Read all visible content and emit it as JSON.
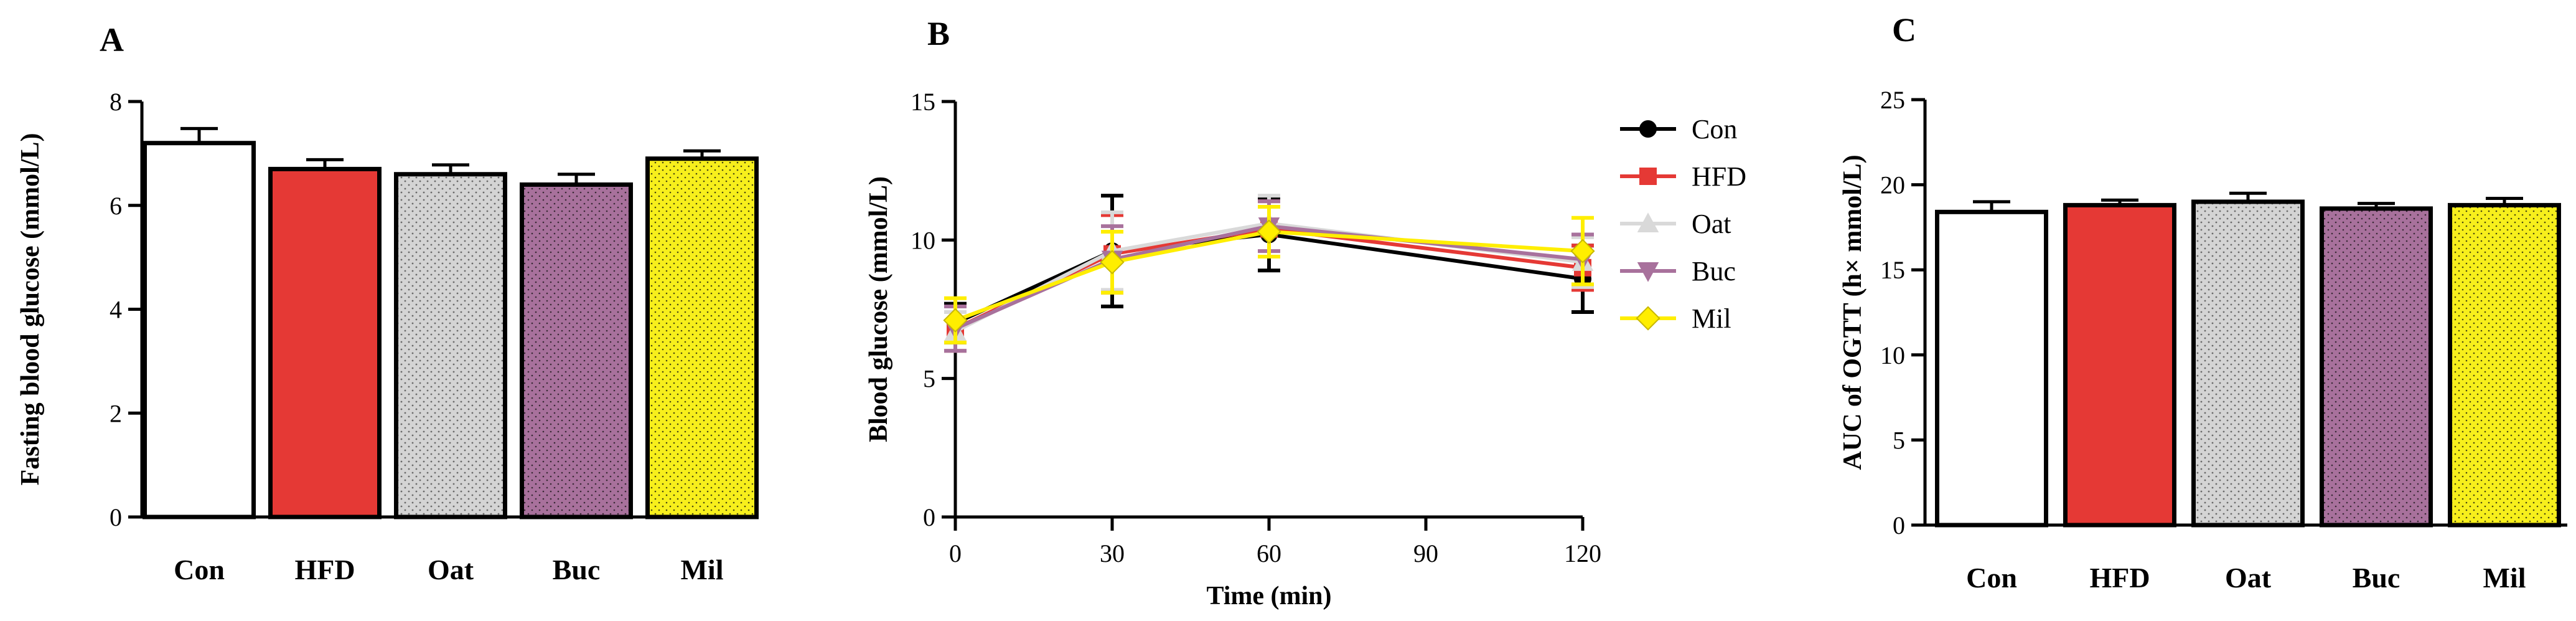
{
  "chart_data": [
    {
      "panel": "A",
      "type": "bar",
      "title": "",
      "xlabel": "",
      "ylabel": "Fasting blood glucose (mmol/L)",
      "categories": [
        "Con",
        "HFD",
        "Oat",
        "Buc",
        "Mil"
      ],
      "values": [
        7.2,
        6.7,
        6.6,
        6.4,
        6.9
      ],
      "errors": [
        0.28,
        0.18,
        0.18,
        0.2,
        0.15
      ],
      "colors": [
        "#ffffff",
        "#e53935",
        "#d4d4d4",
        "#a8719c",
        "#f7ef1c"
      ],
      "ylim": [
        0,
        8
      ],
      "yticks": [
        0,
        2,
        4,
        6,
        8
      ]
    },
    {
      "panel": "B",
      "type": "line",
      "title": "",
      "xlabel": "Time (min)",
      "ylabel": "Blood glucose (mmol/L)",
      "x": [
        0,
        30,
        60,
        120
      ],
      "xlim": [
        0,
        120
      ],
      "xticks": [
        0,
        30,
        60,
        90,
        120
      ],
      "ylim": [
        0,
        15
      ],
      "yticks": [
        0,
        5,
        10,
        15
      ],
      "legend_position": "right",
      "series": [
        {
          "name": "Con",
          "values": [
            7.0,
            9.6,
            10.2,
            8.6
          ],
          "errors": [
            0.7,
            2.0,
            1.3,
            1.2
          ],
          "color": "#000000",
          "marker": "circle"
        },
        {
          "name": "HFD",
          "values": [
            6.8,
            9.5,
            10.4,
            9.0
          ],
          "errors": [
            0.8,
            1.4,
            1.0,
            0.8
          ],
          "color": "#e53935",
          "marker": "square"
        },
        {
          "name": "Oat",
          "values": [
            6.7,
            9.6,
            10.6,
            9.2
          ],
          "errors": [
            0.7,
            1.4,
            1.0,
            0.9
          ],
          "color": "#d9d9d9",
          "marker": "triangle-up"
        },
        {
          "name": "Buc",
          "values": [
            6.8,
            9.3,
            10.5,
            9.3
          ],
          "errors": [
            0.8,
            1.2,
            0.9,
            0.9
          ],
          "color": "#a8719c",
          "marker": "triangle-down"
        },
        {
          "name": "Mil",
          "values": [
            7.1,
            9.2,
            10.3,
            9.6
          ],
          "errors": [
            0.8,
            1.1,
            0.9,
            1.2
          ],
          "color": "#ffee00",
          "marker": "diamond"
        }
      ]
    },
    {
      "panel": "C",
      "type": "bar",
      "title": "",
      "xlabel": "",
      "ylabel": "AUC of OGTT (h× mmol/L)",
      "categories": [
        "Con",
        "HFD",
        "Oat",
        "Buc",
        "Mil"
      ],
      "values": [
        18.4,
        18.8,
        19.0,
        18.6,
        18.8
      ],
      "errors": [
        0.6,
        0.3,
        0.5,
        0.3,
        0.4
      ],
      "colors": [
        "#ffffff",
        "#e53935",
        "#d4d4d4",
        "#a8719c",
        "#f7ef1c"
      ],
      "ylim": [
        0,
        25
      ],
      "yticks": [
        0,
        5,
        10,
        15,
        20,
        25
      ]
    }
  ]
}
